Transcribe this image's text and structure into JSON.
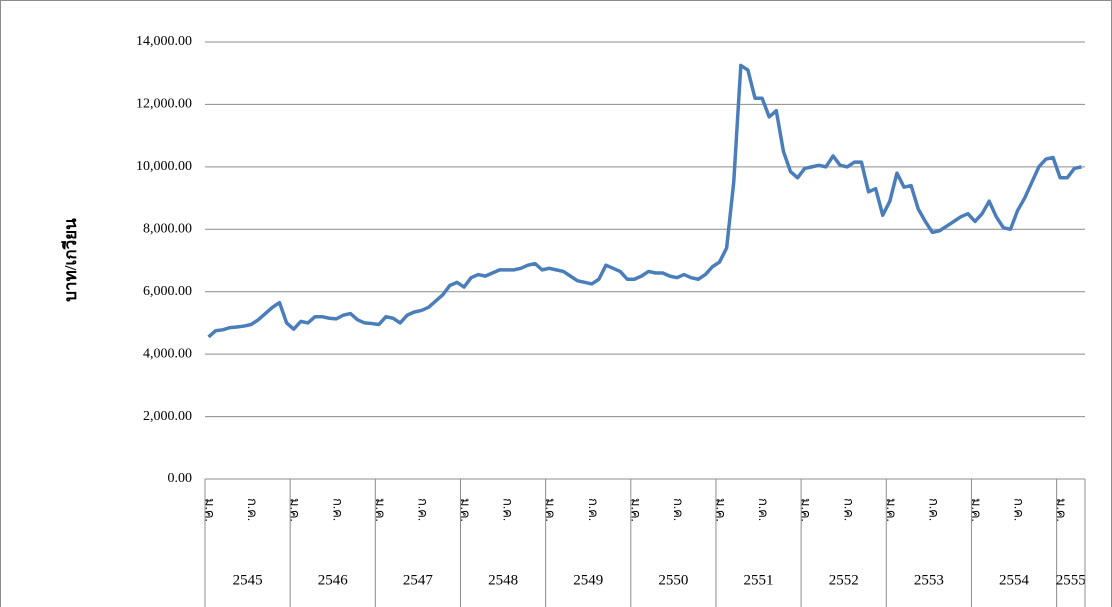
{
  "chart_data": {
    "type": "line",
    "y_label": "บาท/เกวียน",
    "ylim": [
      0,
      14000
    ],
    "yticks": [
      {
        "value": 0,
        "label": "0.00"
      },
      {
        "value": 2000,
        "label": "2,000.00"
      },
      {
        "value": 4000,
        "label": "4,000.00"
      },
      {
        "value": 6000,
        "label": "6,000.00"
      },
      {
        "value": 8000,
        "label": "8,000.00"
      },
      {
        "value": 10000,
        "label": "10,000.00"
      },
      {
        "value": 12000,
        "label": "12,000.00"
      },
      {
        "value": 14000,
        "label": "14,000.00"
      }
    ],
    "grid": true,
    "categories": [
      "ม.ค.",
      null,
      null,
      null,
      null,
      null,
      "ก.ค.",
      null,
      null,
      null,
      null,
      null,
      "ม.ค.",
      null,
      null,
      null,
      null,
      null,
      "ก.ค.",
      null,
      null,
      null,
      null,
      null,
      "ม.ค.",
      null,
      null,
      null,
      null,
      null,
      "ก.ค.",
      null,
      null,
      null,
      null,
      null,
      "ม.ค.",
      null,
      null,
      null,
      null,
      null,
      "ก.ค.",
      null,
      null,
      null,
      null,
      null,
      "ม.ค.",
      null,
      null,
      null,
      null,
      null,
      "ก.ค.",
      null,
      null,
      null,
      null,
      null,
      "ม.ค.",
      null,
      null,
      null,
      null,
      null,
      "ก.ค.",
      null,
      null,
      null,
      null,
      null,
      "ม.ค.",
      null,
      null,
      null,
      null,
      null,
      "ก.ค.",
      null,
      null,
      null,
      null,
      null,
      "ม.ค.",
      null,
      null,
      null,
      null,
      null,
      "ก.ค.",
      null,
      null,
      null,
      null,
      null,
      "ม.ค.",
      null,
      null,
      null,
      null,
      null,
      "ก.ค.",
      null,
      null,
      null,
      null,
      null,
      "ม.ค.",
      null,
      null,
      null,
      null,
      null,
      "ก.ค.",
      null,
      null,
      null,
      null,
      null,
      "ม.ค.",
      null,
      null,
      null
    ],
    "years": [
      "2545",
      "2546",
      "2547",
      "2548",
      "2549",
      "2550",
      "2551",
      "2552",
      "2553",
      "2554",
      "2555"
    ],
    "series": [
      {
        "name": "บาท/เกวียน",
        "color": "#4a7ebb",
        "values": [
          4550,
          4750,
          4780,
          4850,
          4870,
          4900,
          4950,
          5100,
          5300,
          5500,
          5650,
          5000,
          4800,
          5050,
          5000,
          5200,
          5200,
          5150,
          5130,
          5250,
          5300,
          5100,
          5000,
          4980,
          4950,
          5200,
          5150,
          5000,
          5250,
          5350,
          5400,
          5500,
          5700,
          5900,
          6200,
          6300,
          6150,
          6450,
          6550,
          6500,
          6600,
          6700,
          6700,
          6700,
          6750,
          6850,
          6900,
          6700,
          6750,
          6700,
          6650,
          6500,
          6350,
          6300,
          6250,
          6400,
          6850,
          6750,
          6650,
          6400,
          6400,
          6500,
          6650,
          6600,
          6600,
          6500,
          6450,
          6550,
          6450,
          6400,
          6550,
          6800,
          6950,
          7400,
          9500,
          13250,
          13100,
          12200,
          12200,
          11600,
          11800,
          10500,
          9850,
          9650,
          9950,
          10000,
          10050,
          10000,
          10350,
          10050,
          10000,
          10150,
          10150,
          9200,
          9300,
          8450,
          8900,
          9800,
          9350,
          9400,
          8650,
          8250,
          7900,
          7950,
          8100,
          8250,
          8400,
          8500,
          8250,
          8500,
          8900,
          8400,
          8050,
          8000,
          8600,
          9000,
          9500,
          10000,
          10250,
          10300,
          9650,
          9650,
          9950,
          10000
        ]
      }
    ]
  }
}
